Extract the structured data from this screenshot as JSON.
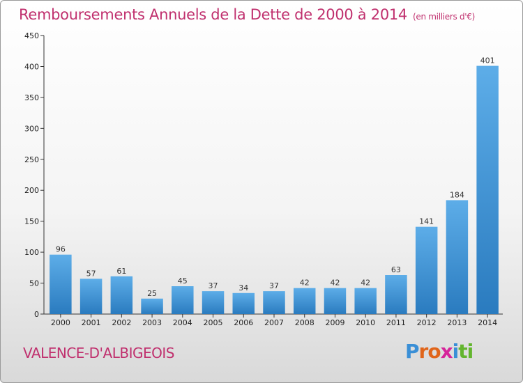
{
  "chart_data": {
    "type": "bar",
    "title": "Remboursements Annuels de la Dette de 2000 à 2014",
    "unit": "(en milliers d'€)",
    "xlabel": "",
    "ylabel": "",
    "categories": [
      "2000",
      "2001",
      "2002",
      "2003",
      "2004",
      "2005",
      "2006",
      "2007",
      "2008",
      "2009",
      "2010",
      "2011",
      "2012",
      "2013",
      "2014"
    ],
    "values": [
      96,
      57,
      61,
      25,
      45,
      37,
      34,
      37,
      42,
      42,
      42,
      63,
      141,
      184,
      401
    ],
    "ylim": [
      0,
      450
    ],
    "yticks": [
      0,
      50,
      100,
      150,
      200,
      250,
      300,
      350,
      400,
      450
    ],
    "grid": false,
    "bar_color_top": "#5dade8",
    "bar_color_bottom": "#2a7bbf"
  },
  "commune": "VALENCE-D'ALBIGEOIS",
  "logo": {
    "letters": [
      "P",
      "r",
      "o",
      "x",
      "i",
      "t",
      "i"
    ],
    "colors": [
      "#3a8fd6",
      "#e0651b",
      "#e0651b",
      "#d6249a",
      "#3a8fd6",
      "#63b52e",
      "#63b52e"
    ]
  }
}
